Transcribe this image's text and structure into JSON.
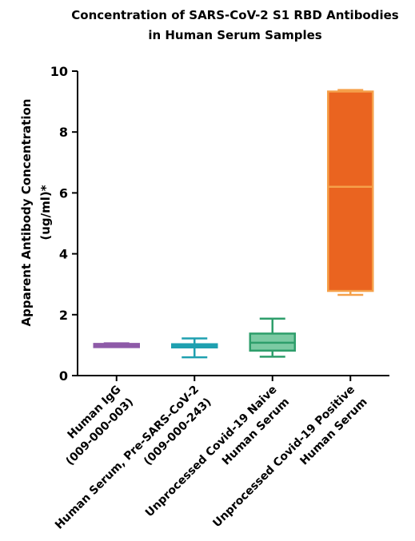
{
  "chart_data": {
    "type": "box",
    "title_lines": [
      "Concentration of SARS-CoV-2 S1 RBD Antibodies",
      "in Human Serum Samples"
    ],
    "ylabel_lines": [
      "Apparent Antibody Concentration",
      "(ug/ml)*"
    ],
    "ylim": [
      0,
      10
    ],
    "yticks": [
      0,
      2,
      4,
      6,
      8,
      10
    ],
    "grid": false,
    "groups": [
      {
        "label_lines": [
          "Human IgG",
          "(009-000-003)"
        ],
        "color": "#8e5aa8",
        "fill": "#8e5aa8",
        "min": 0.98,
        "q1": 0.99,
        "median": 1.01,
        "q3": 1.04,
        "max": 1.06
      },
      {
        "label_lines": [
          "Human Serum, Pre-SARS-CoV-2",
          "(009-000-243)"
        ],
        "color": "#1fa0b0",
        "fill": "#1fa0b0",
        "min": 0.6,
        "q1": 0.96,
        "median": 1.0,
        "q3": 1.03,
        "max": 1.22
      },
      {
        "label_lines": [
          "Unprocessed Covid-19 Naive",
          "Human Serum"
        ],
        "color": "#2e9e6b",
        "fill": "#7ccaa3",
        "min": 0.62,
        "q1": 0.82,
        "median": 1.08,
        "q3": 1.38,
        "max": 1.87
      },
      {
        "label_lines": [
          "Unprocessed Covid-19 Positive",
          "Human Serum"
        ],
        "color": "#f5a04a",
        "fill": "#ea6420",
        "min": 2.65,
        "q1": 2.78,
        "median": 6.2,
        "q3": 9.33,
        "max": 9.38
      }
    ]
  }
}
